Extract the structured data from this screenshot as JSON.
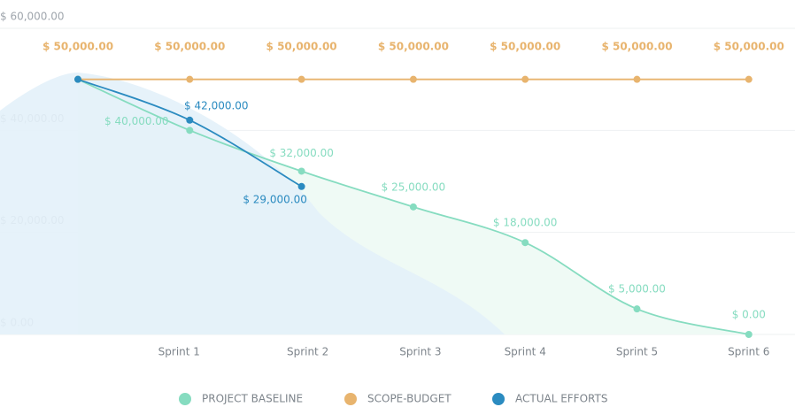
{
  "chart_data": {
    "type": "line",
    "categories": [
      null,
      "Sprint 1",
      "Sprint 2",
      "Sprint 3",
      "Sprint 4",
      "Sprint 5",
      "Sprint 6"
    ],
    "series": [
      {
        "name": "PROJECT BASELINE",
        "color": "#86dcc0",
        "values": [
          50000,
          40000,
          32000,
          25000,
          18000,
          5000,
          0
        ],
        "value_labels": [
          null,
          "$ 40,000.00",
          "$ 32,000.00",
          "$ 25,000.00",
          "$ 18,000.00",
          "$ 5,000.00",
          "$ 0.00"
        ]
      },
      {
        "name": "SCOPE-BUDGET",
        "color": "#e8b46e",
        "values": [
          50000,
          50000,
          50000,
          50000,
          50000,
          50000,
          50000
        ],
        "value_labels": [
          "$ 50,000.00",
          "$ 50,000.00",
          "$ 50,000.00",
          "$ 50,000.00",
          "$ 50,000.00",
          "$ 50,000.00",
          "$ 50,000.00"
        ]
      },
      {
        "name": "ACTUAL EFFORTS",
        "color": "#2b8bc0",
        "values": [
          50000,
          42000,
          29000,
          null,
          null,
          null,
          null
        ],
        "value_labels": [
          null,
          "$ 42,000.00",
          "$ 29,000.00",
          null,
          null,
          null,
          null
        ]
      }
    ],
    "ylim": [
      0,
      60000
    ],
    "yticks": [
      {
        "value": 0,
        "label": "$ 0.00"
      },
      {
        "value": 20000,
        "label": "$ 20,000.00"
      },
      {
        "value": 40000,
        "label": "$ 40,000.00"
      },
      {
        "value": 60000,
        "label": "$ 60,000.00"
      }
    ],
    "grid": true
  }
}
